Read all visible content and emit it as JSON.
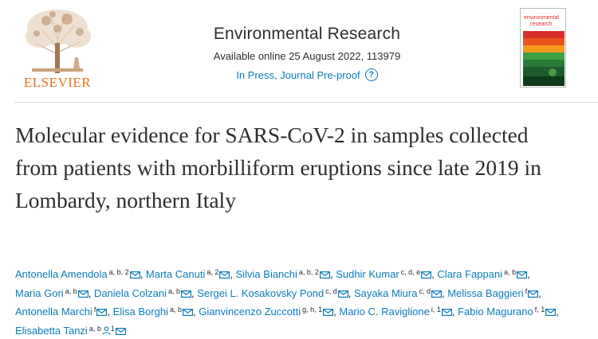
{
  "header": {
    "publisher_logo_text": "ELSEVIER",
    "journal_title": "Environmental Research",
    "availability": "Available online 25 August 2022, 113979",
    "status_link": "In Press, Journal Pre-proof",
    "help_icon_glyph": "?",
    "cover_title_line1": "environmental",
    "cover_title_line2": "research"
  },
  "article": {
    "title": "Molecular evidence for SARS-CoV-2 in samples collected from patients with morbilliform eruptions since late 2019 in Lombardy, northern Italy"
  },
  "authors": [
    {
      "name": "Antonella Amendola",
      "aff": "a, b, 2",
      "icons": [
        "mail"
      ]
    },
    {
      "name": "Marta Canuti",
      "aff": "a, 2",
      "icons": [
        "mail"
      ]
    },
    {
      "name": "Silvia Bianchi",
      "aff": "a, b, 2",
      "icons": [
        "mail"
      ]
    },
    {
      "name": "Sudhir Kumar",
      "aff": "c, d, e",
      "icons": [
        "mail"
      ]
    },
    {
      "name": "Clara Fappani",
      "aff": "a, b",
      "icons": [
        "mail"
      ]
    },
    {
      "name": "Maria Gori",
      "aff": "a, b",
      "icons": [
        "mail"
      ]
    },
    {
      "name": "Daniela Colzani",
      "aff": "a, b",
      "icons": [
        "mail"
      ]
    },
    {
      "name": "Sergei L. Kosakovsky Pond",
      "aff": "c, d",
      "icons": [
        "mail"
      ]
    },
    {
      "name": "Sayaka Miura",
      "aff": "c, d",
      "icons": [
        "mail"
      ]
    },
    {
      "name": "Melissa Baggieri",
      "aff": "f",
      "icons": [
        "mail"
      ]
    },
    {
      "name": "Antonella Marchi",
      "aff": "f",
      "icons": [
        "mail"
      ]
    },
    {
      "name": "Elisa Borghi",
      "aff": "a, b",
      "icons": [
        "mail"
      ]
    },
    {
      "name": "Gianvincenzo Zuccotti",
      "aff": "g, h, 1",
      "icons": [
        "mail"
      ]
    },
    {
      "name": "Mario C. Raviglione",
      "aff": "i, 1",
      "icons": [
        "mail"
      ]
    },
    {
      "name": "Fabio Magurano",
      "aff": "f, 1",
      "icons": [
        "mail"
      ]
    },
    {
      "name": "Elisabetta Tanzi",
      "aff": "a, b",
      "icons": [
        "person",
        "1",
        "mail"
      ]
    }
  ],
  "colors": {
    "link": "#0c7dbb",
    "text": "#2e2e2e",
    "elsevier_orange": "#e9711c"
  }
}
